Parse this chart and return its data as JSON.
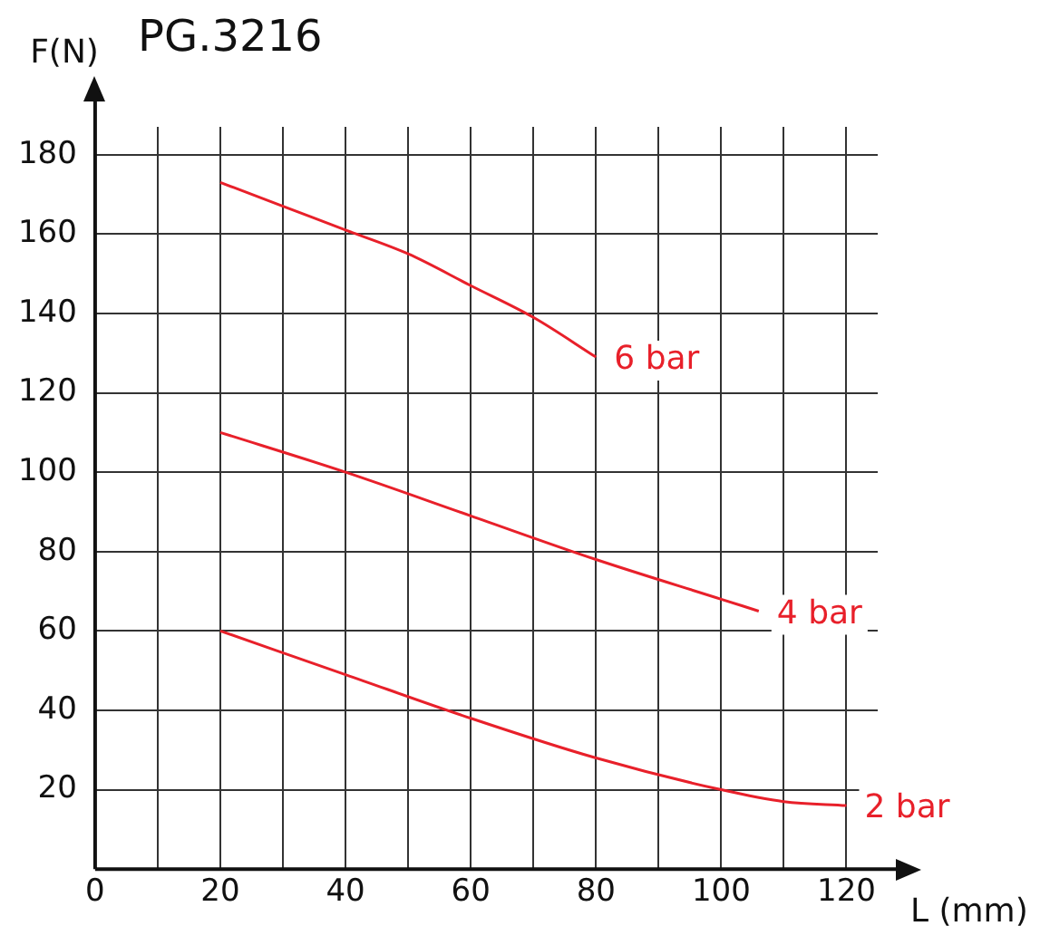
{
  "chart_data": {
    "type": "line",
    "title": "PG.3216",
    "xlabel": "L (mm)",
    "ylabel": "F(N)",
    "xlim": [
      0,
      125
    ],
    "ylim": [
      0,
      187
    ],
    "xticks": [
      0,
      {
        "value": 10,
        "label": null
      },
      20,
      {
        "value": 30,
        "label": null
      },
      40,
      {
        "value": 50,
        "label": null
      },
      60,
      {
        "value": 70,
        "label": null
      },
      80,
      {
        "value": 90,
        "label": null
      },
      100,
      {
        "value": 110,
        "label": null
      },
      120
    ],
    "yticks": [
      20,
      40,
      60,
      80,
      100,
      120,
      140,
      160,
      180
    ],
    "grid": true,
    "legend": false,
    "marker": "none",
    "line_style": "solid",
    "series": [
      {
        "name": "6 bar",
        "color": "#e8202a",
        "x": [
          20,
          30,
          40,
          50,
          60,
          70,
          80
        ],
        "values": [
          173,
          167,
          161,
          155,
          147,
          139,
          129
        ]
      },
      {
        "name": "4 bar",
        "color": "#e8202a",
        "x": [
          20,
          40,
          60,
          80,
          100,
          106
        ],
        "values": [
          110,
          100,
          89,
          78,
          68,
          65
        ]
      },
      {
        "name": "2 bar",
        "color": "#e8202a",
        "x": [
          20,
          40,
          60,
          80,
          100,
          110,
          120
        ],
        "values": [
          60,
          49,
          38,
          28,
          20,
          17,
          16
        ]
      }
    ]
  }
}
